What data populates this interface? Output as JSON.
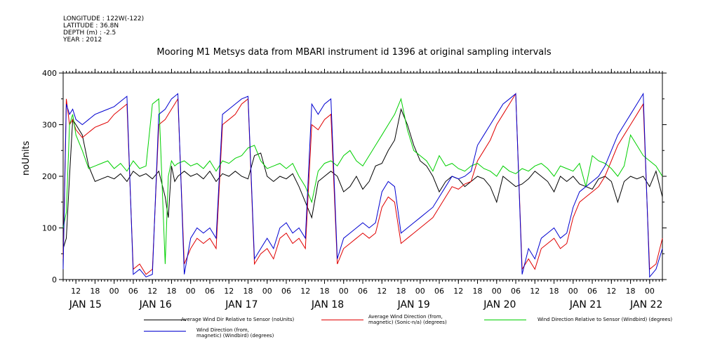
{
  "meta": {
    "longitude": "LONGITUDE : 122W(-122)",
    "latitude": "LATITUDE : 36.8N",
    "depth": "DEPTH (m) : -2.5",
    "year": "YEAR : 2012"
  },
  "chart_data": {
    "type": "line",
    "title": "Mooring M1 Metsys data from MBARI instrument id 1396 at original sampling intervals",
    "ylabel": "noUnits",
    "xlabel": "",
    "ylim": [
      0,
      400
    ],
    "yticks": [
      "0",
      "100",
      "200",
      "300",
      "400"
    ],
    "xlim_hours": [
      8,
      196
    ],
    "hour_ticks": [
      {
        "h": 12,
        "label": "12"
      },
      {
        "h": 18,
        "label": "18"
      },
      {
        "h": 24,
        "label": "00"
      },
      {
        "h": 30,
        "label": "06"
      },
      {
        "h": 36,
        "label": "12"
      },
      {
        "h": 42,
        "label": "18"
      },
      {
        "h": 48,
        "label": "00"
      },
      {
        "h": 54,
        "label": "06"
      },
      {
        "h": 60,
        "label": "12"
      },
      {
        "h": 66,
        "label": "18"
      },
      {
        "h": 72,
        "label": "00"
      },
      {
        "h": 78,
        "label": "06"
      },
      {
        "h": 84,
        "label": "12"
      },
      {
        "h": 90,
        "label": "18"
      },
      {
        "h": 96,
        "label": "00"
      },
      {
        "h": 102,
        "label": "06"
      },
      {
        "h": 108,
        "label": "12"
      },
      {
        "h": 114,
        "label": "18"
      },
      {
        "h": 120,
        "label": "00"
      },
      {
        "h": 126,
        "label": "06"
      },
      {
        "h": 132,
        "label": "12"
      },
      {
        "h": 138,
        "label": "18"
      },
      {
        "h": 144,
        "label": "00"
      },
      {
        "h": 150,
        "label": "06"
      },
      {
        "h": 156,
        "label": "12"
      },
      {
        "h": 162,
        "label": "18"
      },
      {
        "h": 168,
        "label": "00"
      },
      {
        "h": 174,
        "label": "06"
      },
      {
        "h": 180,
        "label": "12"
      },
      {
        "h": 186,
        "label": "18"
      },
      {
        "h": 192,
        "label": "00"
      }
    ],
    "day_labels": [
      {
        "h": 15,
        "label": "JAN 15"
      },
      {
        "h": 37,
        "label": "JAN 16"
      },
      {
        "h": 64,
        "label": "JAN 17"
      },
      {
        "h": 91,
        "label": "JAN 18"
      },
      {
        "h": 118,
        "label": "JAN 19"
      },
      {
        "h": 145,
        "label": "JAN 20"
      },
      {
        "h": 172,
        "label": "JAN 21"
      },
      {
        "h": 191,
        "label": "JAN 22"
      }
    ],
    "series": [
      {
        "name": "Average Wind Dir Relative to Sensor (noUnits)",
        "color": "#000000",
        "x": [
          8,
          9,
          10,
          11,
          12,
          14,
          16,
          18,
          20,
          22,
          24,
          26,
          28,
          30,
          32,
          34,
          36,
          38,
          40,
          41,
          42,
          43,
          44,
          46,
          48,
          50,
          52,
          54,
          56,
          58,
          60,
          62,
          64,
          66,
          68,
          70,
          72,
          74,
          76,
          78,
          80,
          82,
          84,
          86,
          88,
          90,
          92,
          94,
          96,
          98,
          100,
          102,
          104,
          106,
          108,
          110,
          112,
          114,
          116,
          118,
          120,
          122,
          124,
          126,
          128,
          130,
          132,
          134,
          136,
          138,
          140,
          142,
          144,
          146,
          148,
          150,
          152,
          154,
          156,
          158,
          160,
          162,
          164,
          166,
          168,
          170,
          172,
          174,
          176,
          178,
          180,
          182,
          184,
          186,
          188,
          190,
          192,
          194,
          196
        ],
        "y": [
          60,
          80,
          200,
          310,
          300,
          280,
          220,
          190,
          195,
          200,
          195,
          205,
          190,
          210,
          200,
          205,
          195,
          210,
          160,
          120,
          220,
          190,
          200,
          210,
          200,
          205,
          195,
          210,
          190,
          205,
          200,
          210,
          200,
          195,
          240,
          245,
          200,
          190,
          200,
          195,
          205,
          180,
          150,
          120,
          190,
          200,
          210,
          200,
          170,
          180,
          200,
          175,
          190,
          220,
          225,
          250,
          270,
          330,
          300,
          260,
          230,
          220,
          200,
          170,
          190,
          200,
          195,
          180,
          190,
          200,
          195,
          180,
          150,
          200,
          190,
          180,
          185,
          195,
          210,
          200,
          190,
          170,
          200,
          190,
          200,
          185,
          180,
          175,
          195,
          200,
          190,
          150,
          190,
          200,
          195,
          200,
          180,
          210,
          160
        ]
      },
      {
        "name": "Average Wind Direction (from, magnetic) (Sonic-n/a) (degrees)",
        "color": "#e00000",
        "x": [
          8,
          9,
          10,
          11,
          12,
          14,
          16,
          18,
          20,
          22,
          24,
          26,
          28,
          30,
          32,
          34,
          36,
          38,
          40,
          41,
          42,
          43,
          44,
          46,
          48,
          50,
          52,
          54,
          56,
          58,
          60,
          62,
          64,
          66,
          68,
          70,
          72,
          74,
          76,
          78,
          80,
          82,
          84,
          86,
          88,
          90,
          92,
          94,
          96,
          98,
          100,
          102,
          104,
          106,
          108,
          110,
          112,
          114,
          116,
          118,
          120,
          122,
          124,
          126,
          128,
          130,
          132,
          134,
          136,
          138,
          140,
          142,
          144,
          146,
          148,
          150,
          152,
          154,
          156,
          158,
          160,
          162,
          164,
          166,
          168,
          170,
          172,
          174,
          176,
          178,
          180,
          182,
          184,
          186,
          188,
          190,
          192,
          194,
          196
        ],
        "y": [
          40,
          350,
          300,
          310,
          290,
          275,
          285,
          295,
          300,
          305,
          320,
          330,
          340,
          20,
          30,
          10,
          20,
          300,
          310,
          320,
          330,
          340,
          350,
          30,
          60,
          80,
          70,
          80,
          60,
          300,
          310,
          320,
          340,
          350,
          30,
          50,
          60,
          40,
          80,
          90,
          70,
          80,
          60,
          300,
          290,
          310,
          320,
          30,
          60,
          70,
          80,
          90,
          80,
          90,
          140,
          160,
          150,
          70,
          80,
          90,
          100,
          110,
          120,
          140,
          160,
          180,
          175,
          185,
          190,
          230,
          250,
          270,
          300,
          320,
          340,
          360,
          20,
          40,
          20,
          60,
          70,
          80,
          60,
          70,
          120,
          150,
          160,
          170,
          180,
          200,
          230,
          260,
          280,
          300,
          320,
          340,
          20,
          30,
          80
        ]
      },
      {
        "name": "Wind Direction Relative to Sensor (Windbird) (degrees)",
        "color": "#00d000",
        "x": [
          8,
          9,
          10,
          11,
          12,
          14,
          16,
          18,
          20,
          22,
          24,
          26,
          28,
          30,
          32,
          34,
          36,
          38,
          40,
          41,
          42,
          43,
          44,
          46,
          48,
          50,
          52,
          54,
          56,
          58,
          60,
          62,
          64,
          66,
          68,
          70,
          72,
          74,
          76,
          78,
          80,
          82,
          84,
          86,
          88,
          90,
          92,
          94,
          96,
          98,
          100,
          102,
          104,
          106,
          108,
          110,
          112,
          114,
          116,
          118,
          120,
          122,
          124,
          126,
          128,
          130,
          132,
          134,
          136,
          138,
          140,
          142,
          144,
          146,
          148,
          150,
          152,
          154,
          156,
          158,
          160,
          162,
          164,
          166,
          168,
          170,
          172,
          174,
          176,
          178,
          180,
          182,
          184,
          186,
          188,
          190,
          192,
          194,
          196
        ],
        "y": [
          100,
          130,
          300,
          320,
          280,
          250,
          215,
          220,
          225,
          230,
          215,
          225,
          210,
          230,
          215,
          220,
          340,
          350,
          30,
          200,
          230,
          220,
          225,
          230,
          220,
          225,
          215,
          230,
          210,
          230,
          225,
          235,
          240,
          255,
          260,
          230,
          215,
          220,
          225,
          215,
          225,
          200,
          180,
          150,
          210,
          225,
          230,
          220,
          240,
          250,
          230,
          220,
          240,
          260,
          280,
          300,
          320,
          350,
          290,
          250,
          240,
          230,
          210,
          240,
          220,
          225,
          215,
          210,
          220,
          225,
          215,
          210,
          200,
          220,
          210,
          205,
          215,
          210,
          220,
          225,
          215,
          200,
          220,
          215,
          210,
          225,
          180,
          240,
          230,
          225,
          215,
          200,
          220,
          280,
          260,
          240,
          230,
          220,
          200
        ]
      },
      {
        "name": "Wind Direction (from, magnetic) (Windbird) (degrees)",
        "color": "#0000d0",
        "x": [
          8,
          9,
          10,
          11,
          12,
          14,
          16,
          18,
          20,
          22,
          24,
          26,
          28,
          30,
          32,
          34,
          36,
          38,
          40,
          41,
          42,
          43,
          44,
          46,
          48,
          50,
          52,
          54,
          56,
          58,
          60,
          62,
          64,
          66,
          68,
          70,
          72,
          74,
          76,
          78,
          80,
          82,
          84,
          86,
          88,
          90,
          92,
          94,
          96,
          98,
          100,
          102,
          104,
          106,
          108,
          110,
          112,
          114,
          116,
          118,
          120,
          122,
          124,
          126,
          128,
          130,
          132,
          134,
          136,
          138,
          140,
          142,
          144,
          146,
          148,
          150,
          152,
          154,
          156,
          158,
          160,
          162,
          164,
          166,
          168,
          170,
          172,
          174,
          176,
          178,
          180,
          182,
          184,
          186,
          188,
          190,
          192,
          194,
          196
        ],
        "y": [
          20,
          340,
          320,
          330,
          310,
          300,
          310,
          320,
          325,
          330,
          335,
          345,
          355,
          10,
          20,
          5,
          10,
          320,
          330,
          340,
          350,
          355,
          360,
          10,
          80,
          100,
          90,
          100,
          80,
          320,
          330,
          340,
          350,
          355,
          40,
          60,
          80,
          60,
          100,
          110,
          90,
          100,
          80,
          340,
          320,
          340,
          350,
          40,
          80,
          90,
          100,
          110,
          100,
          110,
          170,
          190,
          180,
          90,
          100,
          110,
          120,
          130,
          140,
          160,
          180,
          200,
          195,
          200,
          210,
          260,
          280,
          300,
          320,
          340,
          350,
          360,
          10,
          60,
          40,
          80,
          90,
          100,
          80,
          90,
          140,
          170,
          180,
          190,
          200,
          220,
          250,
          280,
          300,
          320,
          340,
          360,
          5,
          20,
          60
        ]
      }
    ],
    "legend": [
      {
        "label": "Average Wind Dir Relative to Sensor (noUnits)",
        "color": "#000000"
      },
      {
        "label": "Average Wind Direction (from,\nmagnetic) (Sonic-n/a) (degrees)",
        "color": "#e00000"
      },
      {
        "label": "Wind Direction Relative to Sensor (Windbird) (degrees)",
        "color": "#00d000"
      },
      {
        "label": "Wind Direction (from,\nmagnetic) (Windbird) (degrees)",
        "color": "#0000d0"
      }
    ]
  }
}
